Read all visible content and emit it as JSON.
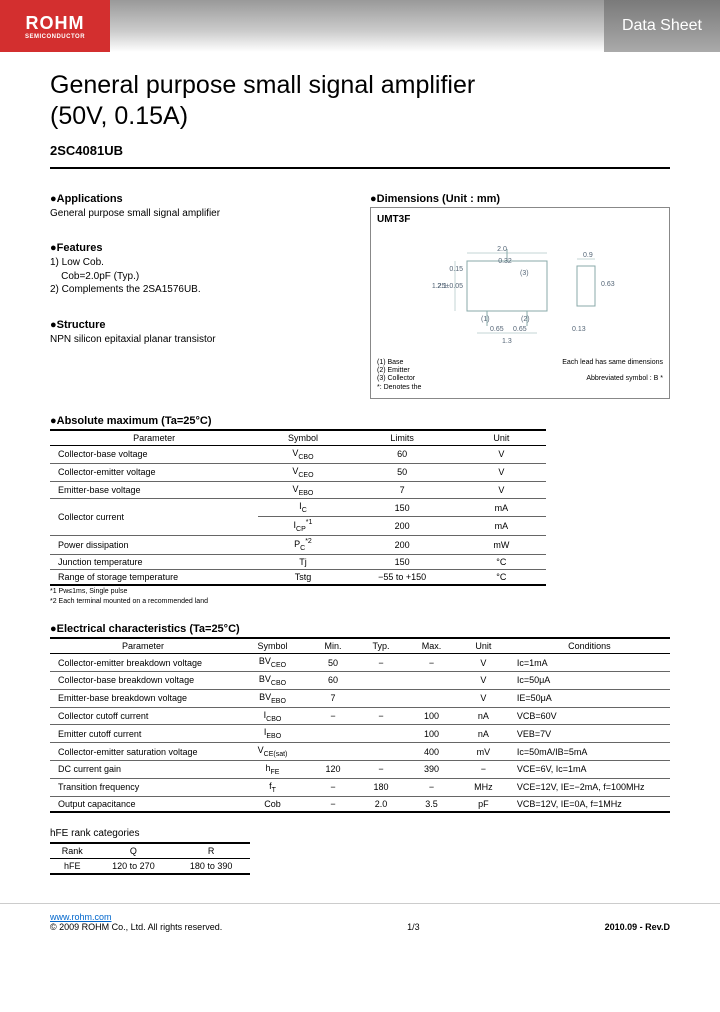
{
  "header": {
    "logo_main": "ROHM",
    "logo_sub": "SEMICONDUCTOR",
    "right_label": "Data Sheet"
  },
  "title_line1": "General purpose small signal amplifier",
  "title_line2": "(50V, 0.15A)",
  "part_number": "2SC4081UB",
  "applications": {
    "head": "●Applications",
    "body": "General purpose small signal amplifier"
  },
  "features": {
    "head": "●Features",
    "l1": "1) Low Cob.",
    "l2": "    Cob=2.0pF (Typ.)",
    "l3": "2) Complements the 2SA1576UB."
  },
  "structure": {
    "head": "●Structure",
    "body": "NPN silicon epitaxial planar transistor"
  },
  "dimensions": {
    "head": "●Dimensions (Unit : mm)",
    "pkg": "UMT3F",
    "w_top": "2.0",
    "w_right": "0.9",
    "h_right": "0.63",
    "h_left": "2.1",
    "h_inner": "1.25±0.05",
    "h_small": "0.15",
    "pitch1": "0.65",
    "pitch2": "0.65",
    "span": "1.3",
    "thk": "0.13",
    "pin3": "(3)",
    "pin1": "(1)",
    "pin2": "(2)",
    "top032": "0.32",
    "note_each": "Each lead has same dimensions",
    "note_base": "(1) Base",
    "note_emitter": "(2) Emitter",
    "note_collector": "(3) Collector",
    "note_dash": "*: Denotes the",
    "abbrev": "Abbreviated symbol : B *"
  },
  "absmax": {
    "head": "●Absolute maximum (Ta=25°C)",
    "cols": {
      "param": "Parameter",
      "sym": "Symbol",
      "lim": "Limits",
      "unit": "Unit"
    },
    "rows": [
      {
        "param": "Collector-base voltage",
        "sym": "V",
        "sub": "CBO",
        "lim": "60",
        "unit": "V"
      },
      {
        "param": "Collector-emitter voltage",
        "sym": "V",
        "sub": "CEO",
        "lim": "50",
        "unit": "V"
      },
      {
        "param": "Emitter-base voltage",
        "sym": "V",
        "sub": "EBO",
        "lim": "7",
        "unit": "V"
      },
      {
        "param": "Collector current",
        "sym": "I",
        "sub": "C",
        "lim": "150",
        "unit": "mA",
        "rowspan": 2
      },
      {
        "param": "",
        "sym": "I",
        "sub": "CP",
        "sup": "*1",
        "lim": "200",
        "unit": "mA"
      },
      {
        "param": "Power dissipation",
        "sym": "P",
        "sub": "C",
        "sup": "*2",
        "lim": "200",
        "unit": "mW"
      },
      {
        "param": "Junction temperature",
        "sym": "Tj",
        "sub": "",
        "lim": "150",
        "unit": "°C"
      },
      {
        "param": "Range of storage temperature",
        "sym": "Tstg",
        "sub": "",
        "lim": "−55 to +150",
        "unit": "°C"
      }
    ],
    "foot1": "*1 Pw≤1ms, Single pulse",
    "foot2": "*2 Each terminal mounted on a recommended land"
  },
  "elec": {
    "head": "●Electrical characteristics (Ta=25°C)",
    "cols": {
      "param": "Parameter",
      "sym": "Symbol",
      "min": "Min.",
      "typ": "Typ.",
      "max": "Max.",
      "unit": "Unit",
      "cond": "Conditions"
    },
    "rows": [
      {
        "param": "Collector-emitter breakdown voltage",
        "sym": "BV",
        "sub": "CEO",
        "min": "50",
        "typ": "−",
        "max": "−",
        "unit": "V",
        "cond": "Ic=1mA"
      },
      {
        "param": "Collector-base breakdown voltage",
        "sym": "BV",
        "sub": "CBO",
        "min": "60",
        "typ": "",
        "max": "",
        "unit": "V",
        "cond": "Ic=50μA"
      },
      {
        "param": "Emitter-base breakdown voltage",
        "sym": "BV",
        "sub": "EBO",
        "min": "7",
        "typ": "",
        "max": "",
        "unit": "V",
        "cond": "IE=50μA"
      },
      {
        "param": "Collector cutoff current",
        "sym": "I",
        "sub": "CBO",
        "min": "−",
        "typ": "−",
        "max": "100",
        "unit": "nA",
        "cond": "VCB=60V"
      },
      {
        "param": "Emitter cutoff current",
        "sym": "I",
        "sub": "EBO",
        "min": "",
        "typ": "",
        "max": "100",
        "unit": "nA",
        "cond": "VEB=7V"
      },
      {
        "param": "Collector-emitter saturation voltage",
        "sym": "V",
        "sub": "CE(sat)",
        "min": "",
        "typ": "",
        "max": "400",
        "unit": "mV",
        "cond": "Ic=50mA/IB=5mA"
      },
      {
        "param": "DC current gain",
        "sym": "h",
        "sub": "FE",
        "min": "120",
        "typ": "−",
        "max": "390",
        "unit": "−",
        "cond": "VCE=6V, Ic=1mA"
      },
      {
        "param": "Transition frequency",
        "sym": "f",
        "sub": "T",
        "min": "−",
        "typ": "180",
        "max": "−",
        "unit": "MHz",
        "cond": "VCE=12V, IE=−2mA, f=100MHz"
      },
      {
        "param": "Output capacitance",
        "sym": "Cob",
        "sub": "",
        "min": "−",
        "typ": "2.0",
        "max": "3.5",
        "unit": "pF",
        "cond": "VCB=12V, IE=0A, f=1MHz"
      }
    ]
  },
  "rank": {
    "head": "hFE rank categories",
    "cols": {
      "rank": "Rank",
      "q": "Q",
      "r": "R"
    },
    "row": {
      "rank": "hFE",
      "q": "120 to 270",
      "r": "180 to 390"
    }
  },
  "footer": {
    "url": "www.rohm.com",
    "copyright": "© 2009 ROHM Co., Ltd. All rights reserved.",
    "page": "1/3",
    "rev": "2010.09 - Rev.D"
  },
  "colors": {
    "logo_bg": "#d32f2f",
    "rule": "#000000",
    "border": "#666666",
    "link": "#0066cc"
  }
}
